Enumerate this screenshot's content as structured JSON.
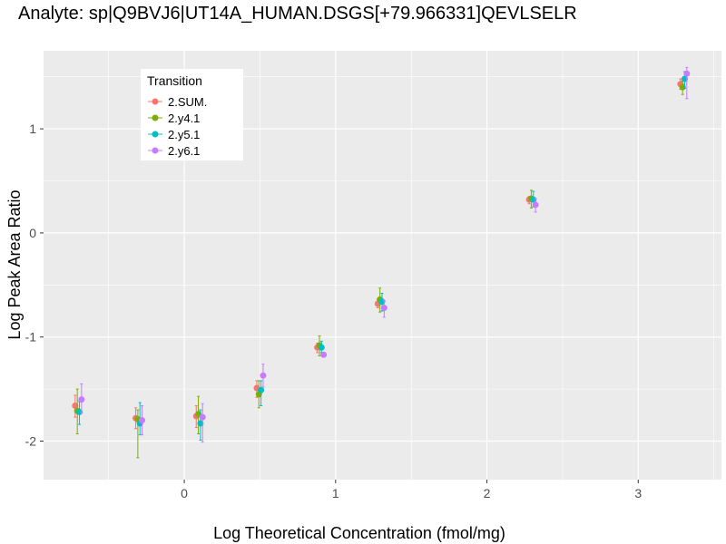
{
  "chart_data": {
    "type": "scatter",
    "title": "Analyte: sp|Q9BVJ6|UT14A_HUMAN.DSGS[+79.966331]QEVLSELR",
    "xlabel": "Log Theoretical Concentration (fmol/mg)",
    "ylabel": "Log Peak Area Ratio",
    "xlim": [
      -0.93,
      3.55
    ],
    "ylim": [
      -2.37,
      1.75
    ],
    "x_ticks": [
      0,
      1,
      2,
      3
    ],
    "y_ticks": [
      -2,
      -1,
      0,
      1
    ],
    "grid": true,
    "legend": {
      "title": "Transition",
      "position": "top-left"
    },
    "x_levels": [
      -0.7,
      -0.3,
      0.1,
      0.5,
      0.9,
      1.3,
      2.3,
      3.3
    ],
    "series": [
      {
        "name": "2.SUM.",
        "color": "#F8766D",
        "dodge": -0.021,
        "values": [
          -1.66,
          -1.78,
          -1.76,
          -1.49,
          -1.1,
          -0.68,
          0.32,
          1.43
        ],
        "err_low": [
          -1.77,
          -1.88,
          -1.87,
          -1.58,
          -1.15,
          -0.72,
          0.28,
          1.38
        ],
        "err_high": [
          -1.56,
          -1.68,
          -1.66,
          -1.42,
          -1.06,
          -0.64,
          0.35,
          1.48
        ]
      },
      {
        "name": "2.y4.1",
        "color": "#7CAE00",
        "dodge": -0.007,
        "values": [
          -1.71,
          -1.79,
          -1.74,
          -1.55,
          -1.08,
          -0.64,
          0.33,
          1.4
        ],
        "err_low": [
          -1.93,
          -2.16,
          -1.93,
          -1.68,
          -1.18,
          -0.76,
          0.24,
          1.33
        ],
        "err_high": [
          -1.5,
          -1.7,
          -1.57,
          -1.42,
          -0.99,
          -0.53,
          0.41,
          1.46
        ]
      },
      {
        "name": "2.y5.1",
        "color": "#00BFC4",
        "dodge": 0.007,
        "values": [
          -1.72,
          -1.83,
          -1.83,
          -1.51,
          -1.1,
          -0.66,
          0.32,
          1.48
        ],
        "err_low": [
          -1.84,
          -1.94,
          -1.99,
          -1.66,
          -1.15,
          -0.75,
          0.25,
          1.39
        ],
        "err_high": [
          -1.62,
          -1.63,
          -1.7,
          -1.42,
          -1.04,
          -0.58,
          0.4,
          1.55
        ]
      },
      {
        "name": "2.y6.1",
        "color": "#C77CFF",
        "dodge": 0.021,
        "values": [
          -1.6,
          -1.8,
          -1.77,
          -1.37,
          -1.17,
          -0.72,
          0.27,
          1.53
        ],
        "err_low": [
          -1.73,
          -1.94,
          -2.01,
          -1.48,
          -1.19,
          -0.81,
          0.2,
          1.29
        ],
        "err_high": [
          -1.45,
          -1.66,
          -1.64,
          -1.26,
          -1.15,
          -0.65,
          0.33,
          1.59
        ]
      }
    ]
  }
}
